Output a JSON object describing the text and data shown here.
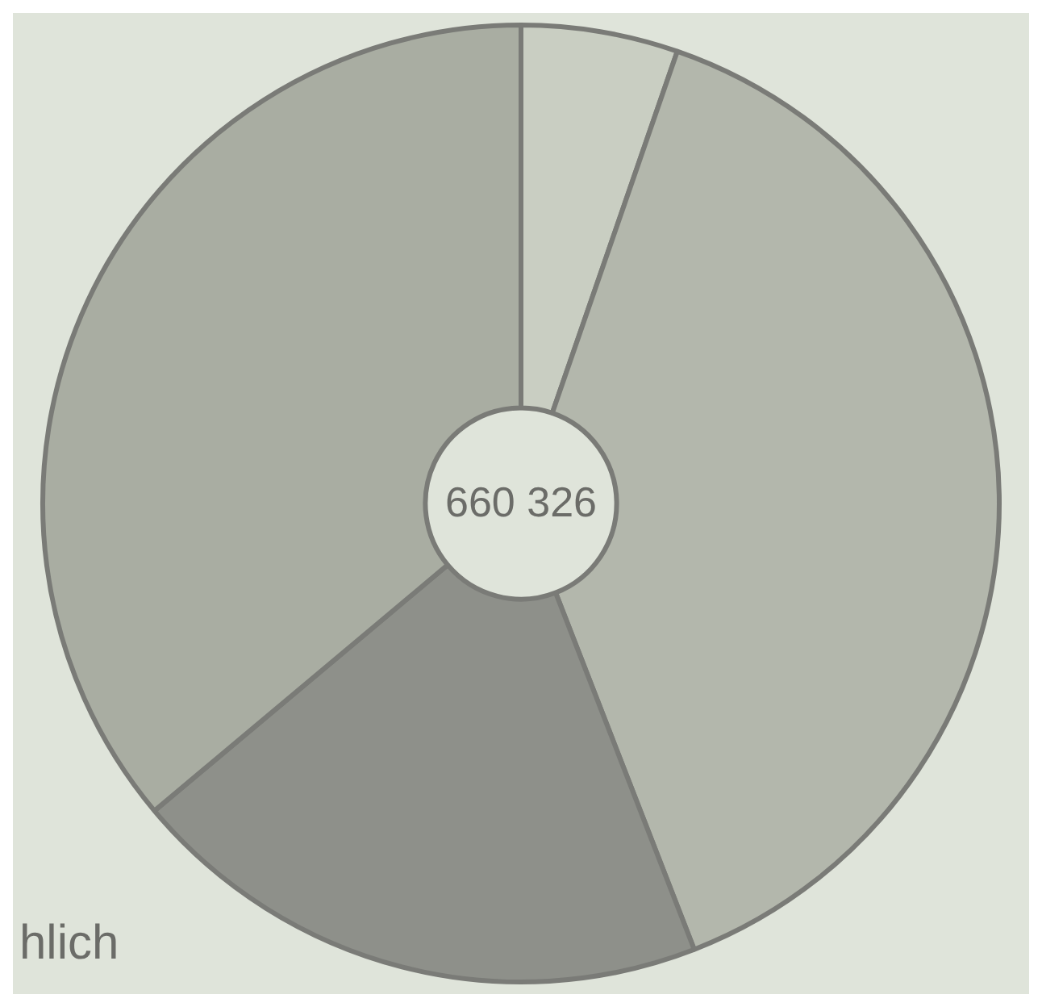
{
  "chart_data": {
    "type": "donut",
    "categories": [
      null,
      null,
      null,
      null
    ],
    "values": [
      5.3,
      38.8,
      19.8,
      36.1
    ],
    "colors": [
      "#c9cec2",
      "#b3b7ac",
      "#8e908a",
      "#a9ada2"
    ],
    "annotations": [
      "660 326",
      "hlich"
    ],
    "legend": false
  }
}
